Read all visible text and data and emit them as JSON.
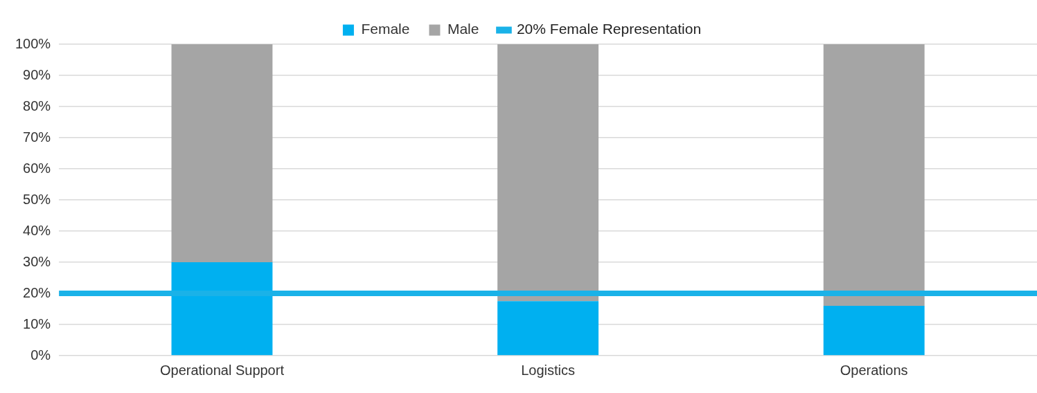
{
  "chart_data": {
    "type": "bar",
    "stacked": true,
    "categories": [
      "Operational Support",
      "Logistics",
      "Operations"
    ],
    "series": [
      {
        "name": "Female",
        "color": "#00b0f0",
        "values": [
          30,
          17.5,
          16
        ]
      },
      {
        "name": "Male",
        "color": "#a5a5a5",
        "values": [
          70,
          82.5,
          84
        ]
      }
    ],
    "ylim": [
      0,
      100
    ],
    "yticks": [
      {
        "value": 0,
        "label": "0%"
      },
      {
        "value": 10,
        "label": "10%"
      },
      {
        "value": 20,
        "label": "20%"
      },
      {
        "value": 30,
        "label": "30%"
      },
      {
        "value": 40,
        "label": "40%"
      },
      {
        "value": 50,
        "label": "50%"
      },
      {
        "value": 60,
        "label": "60%"
      },
      {
        "value": 70,
        "label": "70%"
      },
      {
        "value": 80,
        "label": "80%"
      },
      {
        "value": 90,
        "label": "90%"
      },
      {
        "value": 100,
        "label": "100%"
      }
    ],
    "ref_lines": [
      {
        "axis": "y",
        "value": 20,
        "label": "20% Female Representation",
        "color": "#1ab2e8"
      }
    ],
    "grid": "y",
    "legend": "top"
  }
}
